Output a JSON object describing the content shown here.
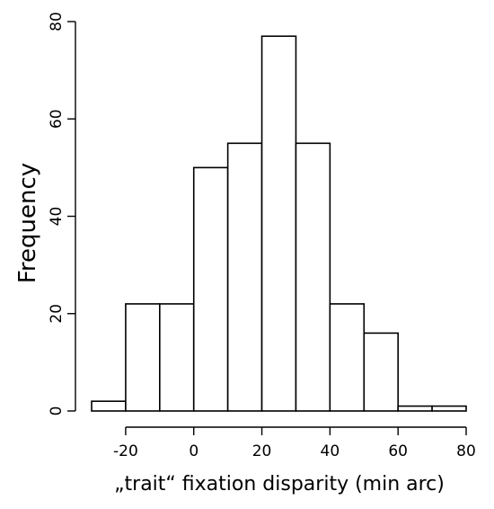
{
  "chart_data": {
    "type": "bar",
    "subtype": "histogram",
    "xlabel": "„trait“ fixation disparity (min arc)",
    "ylabel": "Frequency",
    "xlim": [
      -30,
      80
    ],
    "ylim": [
      0,
      80
    ],
    "x_ticks": [
      -20,
      0,
      20,
      40,
      60,
      80
    ],
    "y_ticks": [
      0,
      20,
      40,
      60,
      80
    ],
    "bins": [
      {
        "from": -30,
        "to": -20,
        "value": 2
      },
      {
        "from": -20,
        "to": -10,
        "value": 22
      },
      {
        "from": -10,
        "to": 0,
        "value": 22
      },
      {
        "from": 0,
        "to": 10,
        "value": 50
      },
      {
        "from": 10,
        "to": 20,
        "value": 55
      },
      {
        "from": 20,
        "to": 30,
        "value": 77
      },
      {
        "from": 30,
        "to": 40,
        "value": 55
      },
      {
        "from": 40,
        "to": 50,
        "value": 22
      },
      {
        "from": 50,
        "to": 60,
        "value": 16
      },
      {
        "from": 60,
        "to": 70,
        "value": 1
      },
      {
        "from": 70,
        "to": 80,
        "value": 1
      }
    ],
    "bar_fill": "#ffffff",
    "bar_stroke": "#000000",
    "grid": false,
    "legend": "none"
  }
}
